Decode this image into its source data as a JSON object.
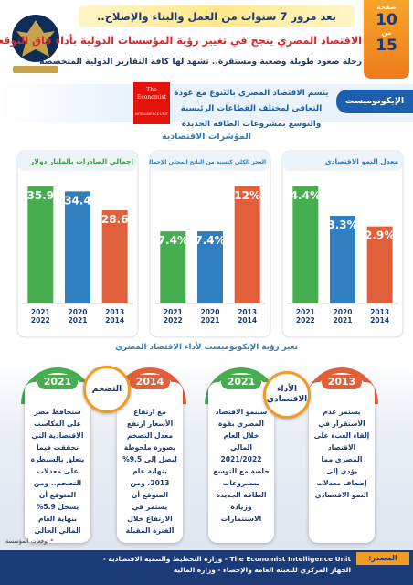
{
  "header": {
    "slogan": "بعد مرور 7 سنوات من العمل والبناء والإصلاح..",
    "page_label": "صفحة",
    "page_num": "10",
    "of_label": "من",
    "total": "15",
    "headline": "الاقتصاد المصري ينجح في تغيير رؤية المؤسسات الدولية بأداء فاق التوقعات",
    "subheadline": "رحلة صعود طويلة وصعبة ومستقرة.. تشهد لها كافة التقارير الدولية المتخصصة"
  },
  "banner": {
    "label": "الإيكونوميست",
    "logo_top": "The Economist",
    "logo_bottom": "INTELLIGENCE UNIT",
    "text": "يتسم الاقتصاد المصري بالتنوع مع عودة التعافي لمختلف القطاعات الرئيسية والتوسع بمشروعات الطاقة الجديدة"
  },
  "sections": {
    "indicators": "المؤشرات الاقتصادية",
    "outlook": "تغير رؤية الإيكونوميست لأداء الاقتصاد المصري"
  },
  "chart_data": [
    {
      "type": "bar",
      "title": "إجمالي الصادرات بالمليار دولار",
      "title_color": "#3aa04a",
      "categories": [
        [
          "2021",
          "2022"
        ],
        [
          "2020",
          "2021"
        ],
        [
          "2013",
          "2014"
        ]
      ],
      "values": [
        35.9,
        34.4,
        28.6
      ],
      "colors": [
        "#46ae4e",
        "#2f7fc1",
        "#e0603c"
      ]
    },
    {
      "type": "bar",
      "title": "العجز الكلي كنسبة من الناتج المحلي الإجمالي",
      "title_color": "#2f7fc1",
      "categories": [
        [
          "2021",
          "2022"
        ],
        [
          "2020",
          "2021"
        ],
        [
          "2013",
          "2014"
        ]
      ],
      "values": [
        7.4,
        7.4,
        12
      ],
      "value_labels": [
        "7.4%",
        "7.4%",
        "12%"
      ],
      "colors": [
        "#46ae4e",
        "#2f7fc1",
        "#e0603c"
      ]
    },
    {
      "type": "bar",
      "title": "معدل النمو الاقتصادي",
      "title_color": "#2f7fc1",
      "categories": [
        [
          "2021",
          "2022"
        ],
        [
          "2020",
          "2021"
        ],
        [
          "2013",
          "2014"
        ]
      ],
      "values": [
        4.4,
        3.3,
        2.9
      ],
      "value_labels": [
        "4.4%",
        "3.3%",
        "2.9%"
      ],
      "colors": [
        "#46ae4e",
        "#2f7fc1",
        "#e0603c"
      ]
    }
  ],
  "outlook": {
    "topics": [
      {
        "name": "التضخم",
        "columns": [
          {
            "year": "2021",
            "text": "ستحافظ مصر على المكاسب الاقتصادية التي تحققت فيما يتعلق بالسيطرة على معدلات التضخم.. ومن المتوقع أن يسجل 5.9% بنهاية العام المالي الحالي"
          },
          {
            "year": "2014",
            "text": "مع ارتفاع الأسعار ارتفع معدل التضخم بصورة ملحوظة ليصل إلى 9.5% بنهاية عام 2013، ومن المتوقع أن يستمر في الارتفاع خلال الفترة المقبلة"
          }
        ]
      },
      {
        "name": "الأداء الاقتصادي",
        "columns": [
          {
            "year": "2021",
            "text": "سينمو الاقتصاد المصري بقوة خلال العام المالي 2021/2022 خاصة مع التوسع بمشروعات الطاقة الجديدة وزيادة الاستثمارات"
          },
          {
            "year": "2013",
            "text": "يستمر عدم الاستقرار في إلقاء العبء على الاقتصاد المصري مما يؤدي إلى إضعاف معدلات النمو الاقتصادي"
          }
        ]
      }
    ]
  },
  "footer": {
    "note": "* توقعات المؤسسة",
    "source_label": "المصدر:",
    "sources": "The Economist Intelligence Unit - وزارة التخطيط والتنمية الاقتصادية - الجهاز المركزي للتعبئة العامة والإحصاء - وزارة المالية"
  }
}
